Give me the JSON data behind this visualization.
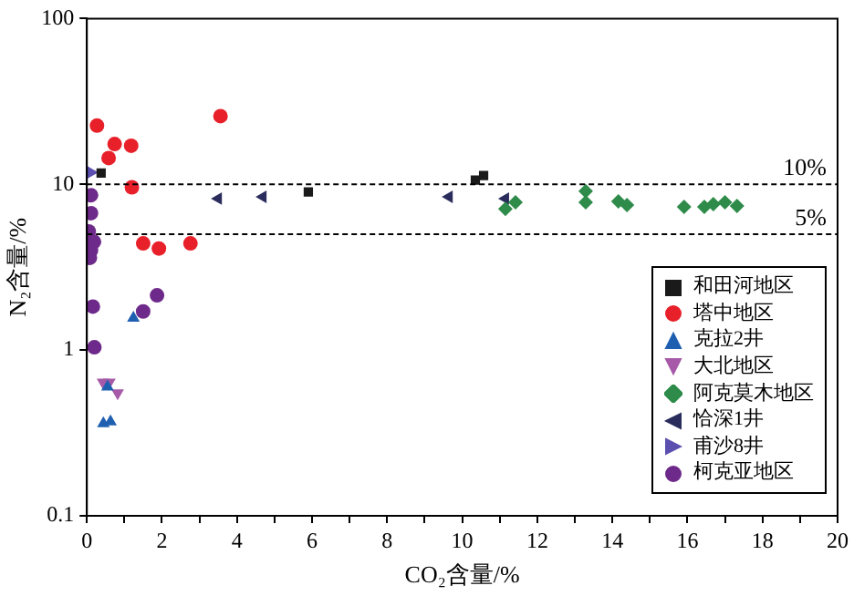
{
  "chart_data": {
    "type": "scatter",
    "xlabel": "CO₂含量/%",
    "ylabel": "N₂含量/%",
    "log": "y",
    "xlim": [
      0,
      20
    ],
    "ylim": [
      0.1,
      100
    ],
    "xticks": [
      0,
      {
        "value": 1,
        "label": null
      },
      2,
      {
        "value": 3,
        "label": null
      },
      4,
      {
        "value": 5,
        "label": null
      },
      6,
      {
        "value": 7,
        "label": null
      },
      8,
      {
        "value": 9,
        "label": null
      },
      10,
      {
        "value": 11,
        "label": null
      },
      12,
      {
        "value": 13,
        "label": null
      },
      14,
      {
        "value": 15,
        "label": null
      },
      16,
      {
        "value": 17,
        "label": null
      },
      18,
      {
        "value": 19,
        "label": null
      },
      20
    ],
    "yticks": [
      0.1,
      1,
      10,
      100
    ],
    "grid": false,
    "legend": "bottom right",
    "ref_lines": [
      {
        "axis": "y",
        "value": 10,
        "label": "10%",
        "color": "#000000",
        "line_style": "dashed"
      },
      {
        "axis": "y",
        "value": 5,
        "label": "5%",
        "color": "#000000",
        "line_style": "dashed"
      }
    ],
    "series": [
      {
        "name": "和田河地区",
        "color": "#1a1a1a",
        "marker": "square",
        "x": [
          0.38,
          5.9,
          10.35,
          10.57
        ],
        "values": [
          11.7,
          9.0,
          10.6,
          11.3
        ]
      },
      {
        "name": "塔中地区",
        "color": "#e8202a",
        "marker": "circle",
        "x": [
          0.27,
          0.74,
          0.58,
          1.18,
          1.2,
          3.56,
          1.5,
          1.92,
          2.76
        ],
        "values": [
          22.6,
          17.5,
          14.4,
          17.1,
          9.6,
          25.8,
          4.4,
          4.1,
          4.4
        ]
      },
      {
        "name": "克拉2井",
        "color": "#1f5fb0",
        "marker": "triangle",
        "x": [
          1.24,
          0.44,
          0.63,
          0.55
        ],
        "values": [
          1.56,
          0.36,
          0.37,
          0.6
        ]
      },
      {
        "name": "大北地区",
        "color": "#a65aa8",
        "marker": "triangle-down",
        "x": [
          0.43,
          0.6,
          0.82
        ],
        "values": [
          0.64,
          0.64,
          0.55
        ]
      },
      {
        "name": "阿克莫木地区",
        "color": "#2e8b4a",
        "marker": "diamond",
        "x": [
          11.15,
          11.42,
          13.29,
          13.29,
          14.16,
          14.39,
          15.91,
          16.45,
          16.69,
          17.0,
          17.32
        ],
        "values": [
          7.1,
          7.8,
          9.1,
          7.8,
          7.9,
          7.5,
          7.3,
          7.3,
          7.6,
          7.8,
          7.4
        ]
      },
      {
        "name": "恰深1井",
        "color": "#2a2d5c",
        "marker": "triangle-left",
        "x": [
          3.5,
          4.69,
          9.65,
          11.15
        ],
        "values": [
          8.2,
          8.4,
          8.4,
          8.2
        ]
      },
      {
        "name": "甫沙8井",
        "color": "#5b4fb0",
        "marker": "triangle-right",
        "x": [
          0.11
        ],
        "values": [
          11.8
        ]
      },
      {
        "name": "柯克亚地区",
        "color": "#6e2a8a",
        "marker": "circle",
        "x": [
          0.11,
          0.11,
          0.05,
          0.19,
          0.11,
          0.08,
          0.16,
          0.2,
          1.5,
          1.87
        ],
        "values": [
          8.6,
          6.7,
          5.2,
          4.5,
          4.0,
          3.6,
          1.83,
          1.04,
          1.71,
          2.14
        ]
      }
    ]
  }
}
